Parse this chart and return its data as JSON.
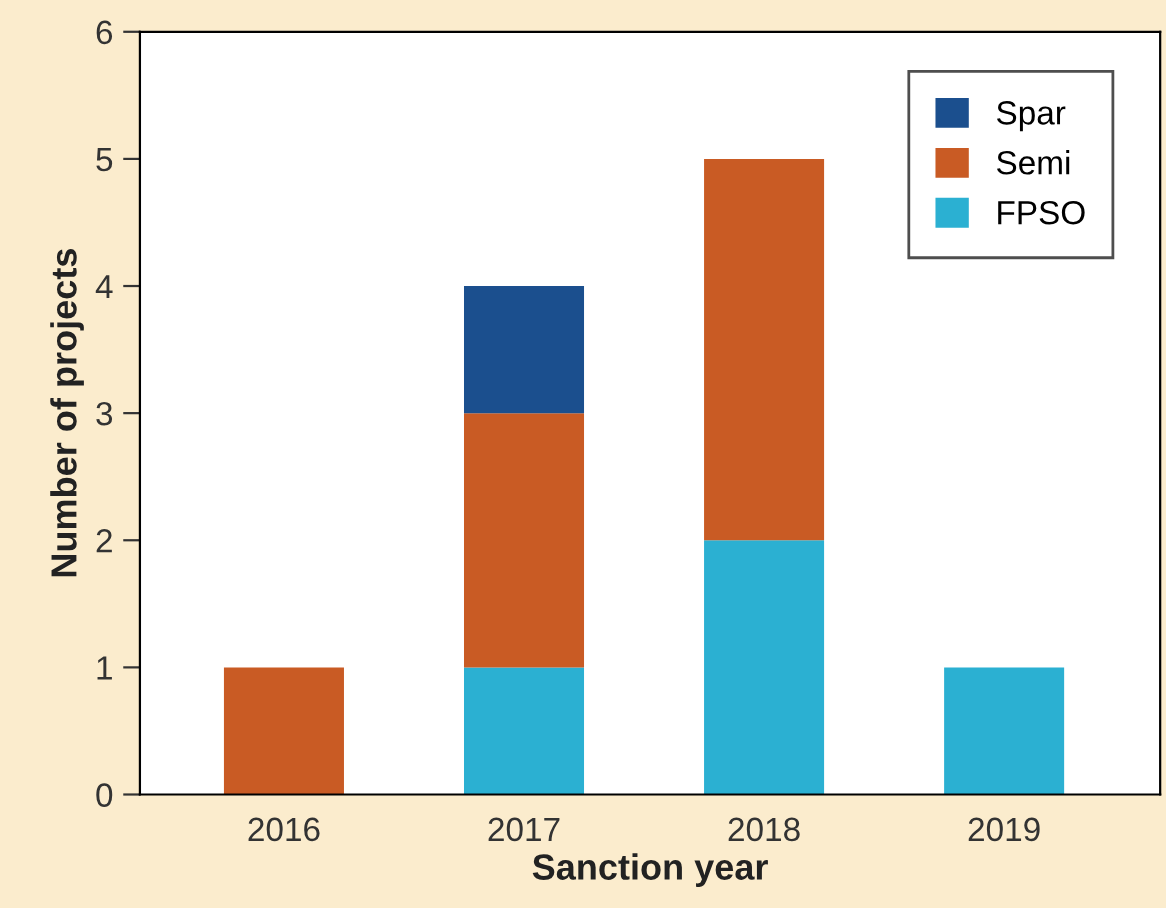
{
  "chart_data": {
    "type": "bar",
    "stacked": true,
    "xlabel": "Sanction year",
    "ylabel": "Number of projects",
    "categories": [
      "2016",
      "2017",
      "2018",
      "2019"
    ],
    "series": [
      {
        "name": "FPSO",
        "color": "#2bb0d2",
        "values": [
          0,
          1,
          2,
          1
        ]
      },
      {
        "name": "Semi",
        "color": "#c95b24",
        "values": [
          1,
          2,
          3,
          0
        ]
      },
      {
        "name": "Spar",
        "color": "#1b4f8e",
        "values": [
          0,
          1,
          0,
          0
        ]
      }
    ],
    "ylim": [
      0,
      6
    ],
    "yticks": [
      0,
      1,
      2,
      3,
      4,
      5,
      6
    ],
    "grid": false,
    "legend": "top right"
  }
}
